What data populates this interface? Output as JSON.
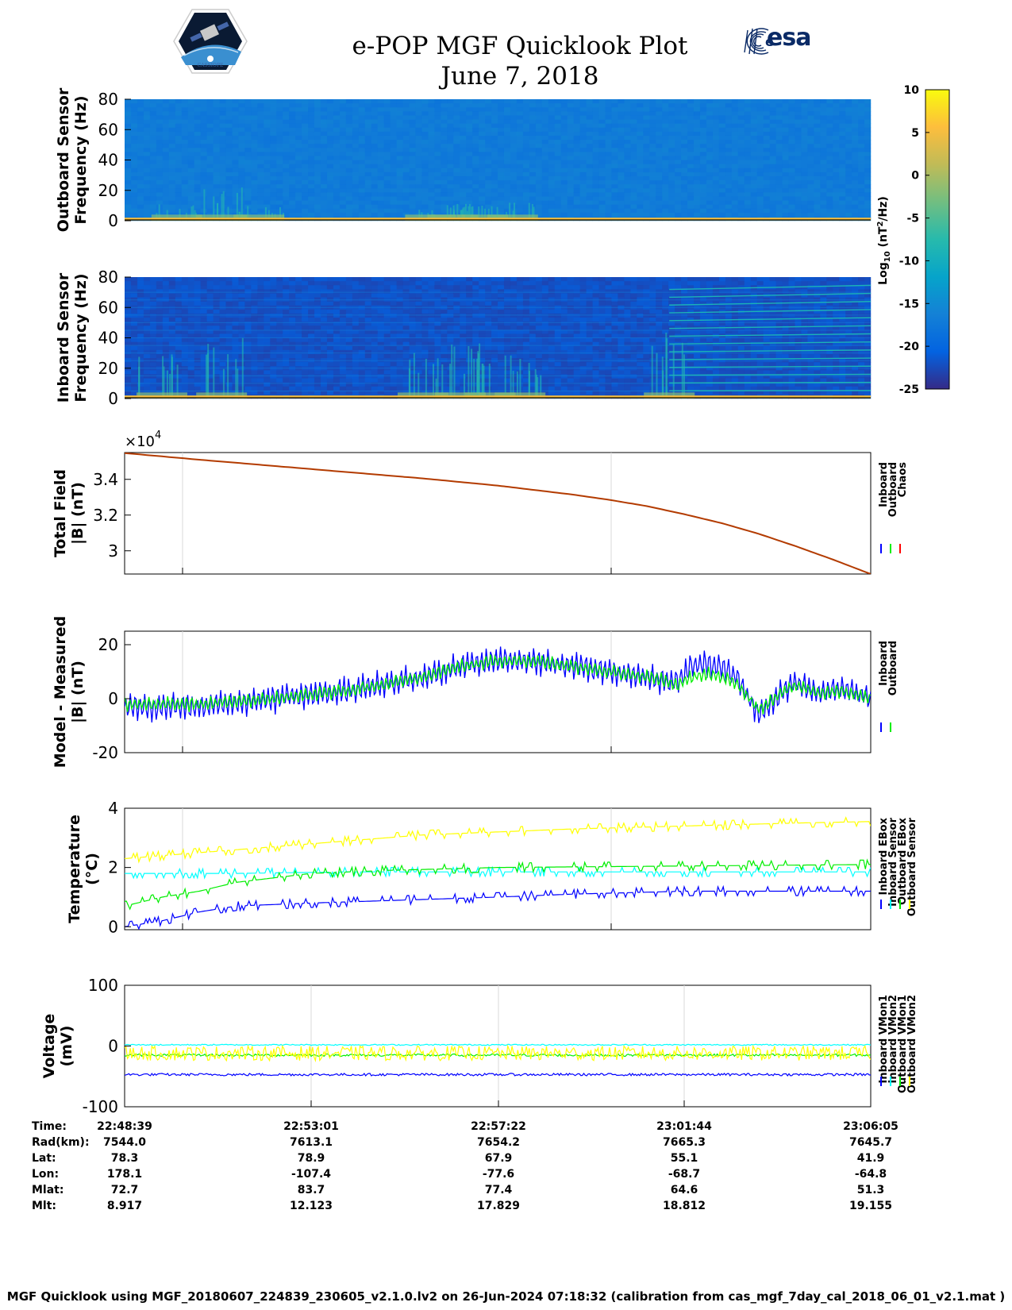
{
  "header": {
    "title": "e-POP MGF Quicklook Plot",
    "date": "June 7, 2018",
    "logo_left": "CASSIOPE",
    "logo_right": "esa"
  },
  "chart_data": [
    {
      "id": "outboard-spectrogram",
      "type": "heatmap",
      "ylabel": [
        "Outboard Sensor",
        "Frequency (Hz)"
      ],
      "ylim": [
        0,
        80
      ],
      "yticks": [
        "0",
        "20",
        "40",
        "60",
        "80"
      ],
      "background_level": -17,
      "low_frequency_level": 5,
      "bursts": [
        {
          "t": 0.07,
          "height_hz": 12
        },
        {
          "t": 0.13,
          "height_hz": 22
        },
        {
          "t": 0.18,
          "height_hz": 10
        },
        {
          "t": 0.41,
          "height_hz": 10
        },
        {
          "t": 0.44,
          "height_hz": 12
        },
        {
          "t": 0.48,
          "height_hz": 12
        },
        {
          "t": 0.52,
          "height_hz": 12
        }
      ],
      "colormap": "parula"
    },
    {
      "id": "inboard-spectrogram",
      "type": "heatmap",
      "ylabel": [
        "Inboard Sensor",
        "Frequency (Hz)"
      ],
      "ylim": [
        0,
        80
      ],
      "yticks": [
        "0",
        "20",
        "40",
        "60",
        "80"
      ],
      "background_level": -22,
      "low_frequency_level": 5,
      "harmonic_lines_hz": [
        5,
        10,
        15,
        20,
        25,
        30,
        35,
        40,
        45,
        50,
        55,
        60,
        65,
        70
      ],
      "harmonics_start_t": 0.73,
      "bursts": [
        {
          "t": 0.05,
          "height_hz": 30
        },
        {
          "t": 0.13,
          "height_hz": 45
        },
        {
          "t": 0.4,
          "height_hz": 30
        },
        {
          "t": 0.45,
          "height_hz": 40
        },
        {
          "t": 0.49,
          "height_hz": 35
        },
        {
          "t": 0.53,
          "height_hz": 30
        },
        {
          "t": 0.73,
          "height_hz": 45
        }
      ],
      "colormap": "parula"
    },
    {
      "id": "total-field",
      "type": "line",
      "ylabel": [
        "Total Field",
        "|B| (nT)"
      ],
      "exponent": "×10",
      "exponent_power": "4",
      "ylim": [
        2.87,
        3.55
      ],
      "yticks": [
        "3",
        "3.2",
        "3.4"
      ],
      "ytick_values": [
        3.0,
        3.2,
        3.4
      ],
      "x": [
        0,
        0.1,
        0.2,
        0.3,
        0.4,
        0.5,
        0.6,
        0.65,
        0.7,
        0.75,
        0.8,
        0.85,
        0.9,
        0.95,
        1.0
      ],
      "values": [
        3.547,
        3.51,
        3.475,
        3.44,
        3.405,
        3.365,
        3.315,
        3.285,
        3.25,
        3.205,
        3.155,
        3.095,
        3.025,
        2.95,
        2.87
      ],
      "legend": [
        "Inboard",
        "Outboard",
        "Chaos"
      ],
      "legend_colors": [
        "#0000ff",
        "#00ee00",
        "#ff0000"
      ],
      "line_color": "#b33b00"
    },
    {
      "id": "model-measured",
      "type": "line",
      "ylabel": [
        "Model - Measured",
        "|B| (nT)"
      ],
      "ylim": [
        -20,
        25
      ],
      "yticks": [
        "-20",
        "0",
        "20"
      ],
      "ytick_values": [
        -20,
        0,
        20
      ],
      "series": [
        {
          "name": "Inboard",
          "color": "#0000ff",
          "trend_x": [
            0,
            0.1,
            0.2,
            0.3,
            0.4,
            0.45,
            0.5,
            0.55,
            0.6,
            0.65,
            0.7,
            0.72,
            0.74,
            0.76,
            0.78,
            0.8,
            0.82,
            0.85,
            0.88,
            0.9,
            0.93,
            0.96,
            1.0
          ],
          "trend_values": [
            -3,
            -3,
            0,
            3,
            8,
            12,
            14,
            14,
            12,
            10,
            8,
            7,
            6,
            12,
            13,
            12,
            8,
            -6,
            2,
            6,
            2,
            4,
            0
          ],
          "amplitude": 6
        },
        {
          "name": "Outboard",
          "color": "#00ee00",
          "trend_x": [
            0,
            0.1,
            0.2,
            0.3,
            0.4,
            0.45,
            0.5,
            0.55,
            0.6,
            0.65,
            0.7,
            0.72,
            0.74,
            0.76,
            0.78,
            0.8,
            0.82,
            0.85,
            0.88,
            0.9,
            0.93,
            0.96,
            1.0
          ],
          "trend_values": [
            -2,
            -2,
            0,
            3,
            8,
            12,
            14,
            14,
            12,
            10,
            8,
            7,
            5,
            8,
            9,
            8,
            6,
            -4,
            2,
            5,
            2,
            3,
            0
          ],
          "amplitude": 3
        }
      ],
      "legend": [
        "Inboard",
        "Outboard"
      ]
    },
    {
      "id": "temperature",
      "type": "line",
      "ylabel": [
        "Temperature",
        "(°C)"
      ],
      "ylim": [
        -0.1,
        4
      ],
      "yticks": [
        "0",
        "2",
        "4"
      ],
      "ytick_values": [
        0,
        2,
        4
      ],
      "series": [
        {
          "name": "Inboard EBox",
          "color": "#0000ff",
          "x": [
            0,
            0.05,
            0.1,
            0.15,
            0.25,
            0.5,
            0.6,
            0.75,
            1.0
          ],
          "values": [
            0.0,
            0.2,
            0.5,
            0.7,
            0.8,
            1.0,
            1.1,
            1.2,
            1.2
          ]
        },
        {
          "name": "Inboard Sensor",
          "color": "#00ffff",
          "x": [
            0,
            0.15,
            0.3,
            0.5,
            0.75,
            1.0
          ],
          "values": [
            1.8,
            1.8,
            1.85,
            1.85,
            1.85,
            1.85
          ]
        },
        {
          "name": "Outboard EBox",
          "color": "#00ee00",
          "x": [
            0,
            0.05,
            0.1,
            0.15,
            0.25,
            0.35,
            0.5,
            1.0
          ],
          "values": [
            0.7,
            1.0,
            1.2,
            1.5,
            1.8,
            1.9,
            2.0,
            2.1
          ]
        },
        {
          "name": "Outboard Sensor",
          "color": "#ffff00",
          "x": [
            0,
            0.1,
            0.2,
            0.3,
            0.4,
            0.5,
            0.6,
            0.75,
            0.9,
            1.0
          ],
          "values": [
            2.3,
            2.5,
            2.7,
            2.9,
            3.1,
            3.2,
            3.3,
            3.4,
            3.5,
            3.55
          ]
        }
      ],
      "legend": [
        "Inboard EBox",
        "Inboard Sensor",
        "Outboard EBox",
        "Outboard Sensor"
      ]
    },
    {
      "id": "voltage",
      "type": "line",
      "ylabel": [
        "Voltage",
        "(mV)"
      ],
      "ylim": [
        -100,
        100
      ],
      "yticks": [
        "-100",
        "0",
        "100"
      ],
      "ytick_values": [
        -100,
        0,
        100
      ],
      "series": [
        {
          "name": "Inboard VMon1",
          "color": "#0000ff",
          "level": -47,
          "amplitude": 2
        },
        {
          "name": "Inboard VMon2",
          "color": "#00ffff",
          "level": 2,
          "amplitude": 1
        },
        {
          "name": "Outboard VMon1",
          "color": "#00ee00",
          "level": -15,
          "amplitude": 2
        },
        {
          "name": "Outboard VMon2",
          "color": "#ffff00",
          "level": -12,
          "amplitude": 12
        }
      ],
      "legend": [
        "Inboard VMon1",
        "Inboard VMon2",
        "Outboard VMon1",
        "Outboard VMon2"
      ]
    }
  ],
  "colorbar": {
    "label_prefix": "Log",
    "label_sub": "10",
    "label_unit_a": "(nT",
    "label_sup": "2",
    "label_unit_b": "/Hz)",
    "ticks": [
      "10",
      "5",
      "0",
      "-5",
      "-10",
      "-15",
      "-20",
      "-25"
    ],
    "tick_values": [
      10,
      5,
      0,
      -5,
      -10,
      -15,
      -20,
      -25
    ],
    "range": [
      -25,
      10
    ]
  },
  "ephemeris": {
    "row_labels": [
      "Time:",
      "Rad(km):",
      "Lat:",
      "Lon:",
      "Mlat:",
      "Mlt:"
    ],
    "columns": [
      {
        "time": "22:48:39",
        "rad": "7544.0",
        "lat": "78.3",
        "lon": "178.1",
        "mlat": "72.7",
        "mlt": "8.917"
      },
      {
        "time": "22:53:01",
        "rad": "7613.1",
        "lat": "78.9",
        "lon": "-107.4",
        "mlat": "83.7",
        "mlt": "12.123"
      },
      {
        "time": "22:57:22",
        "rad": "7654.2",
        "lat": "67.9",
        "lon": "-77.6",
        "mlat": "77.4",
        "mlt": "17.829"
      },
      {
        "time": "23:01:44",
        "rad": "7665.3",
        "lat": "55.1",
        "lon": "-68.7",
        "mlat": "64.6",
        "mlt": "18.812"
      },
      {
        "time": "23:06:05",
        "rad": "7645.7",
        "lat": "41.9",
        "lon": "-64.8",
        "mlat": "51.3",
        "mlt": "19.155"
      }
    ]
  },
  "footer": "MGF Quicklook using MGF_20180607_224839_230605_v2.1.0.lv2 on 26-Jun-2024 07:18:32 (calibration from cas_mgf_7day_cal_2018_06_01_v2.1.mat )"
}
